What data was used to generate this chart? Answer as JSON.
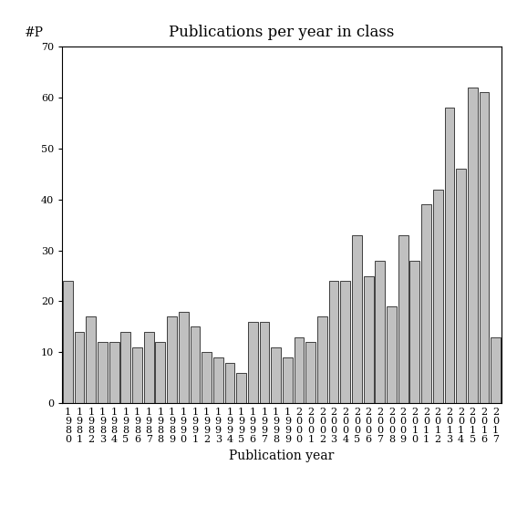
{
  "title": "Publications per year in class",
  "xlabel": "Publication year",
  "ylabel": "#P",
  "years": [
    1980,
    1981,
    1982,
    1983,
    1984,
    1985,
    1986,
    1987,
    1988,
    1989,
    1990,
    1991,
    1992,
    1993,
    1994,
    1995,
    1996,
    1997,
    1998,
    1999,
    2000,
    2001,
    2002,
    2003,
    2004,
    2005,
    2006,
    2007,
    2008,
    2009,
    2010,
    2011,
    2012,
    2013,
    2014,
    2015,
    2016,
    2017
  ],
  "values": [
    24,
    14,
    17,
    12,
    12,
    14,
    11,
    14,
    12,
    17,
    18,
    15,
    10,
    9,
    8,
    6,
    16,
    16,
    11,
    9,
    13,
    12,
    17,
    24,
    24,
    33,
    25,
    28,
    19,
    33,
    28,
    39,
    42,
    58,
    46,
    62,
    61,
    13
  ],
  "bar_color": "#c0c0c0",
  "bar_edgecolor": "#000000",
  "ylim": [
    0,
    70
  ],
  "yticks": [
    0,
    10,
    20,
    30,
    40,
    50,
    60,
    70
  ],
  "bg_color": "#ffffff",
  "title_fontsize": 12,
  "axis_label_fontsize": 10,
  "tick_fontsize": 8,
  "font_family": "serif"
}
